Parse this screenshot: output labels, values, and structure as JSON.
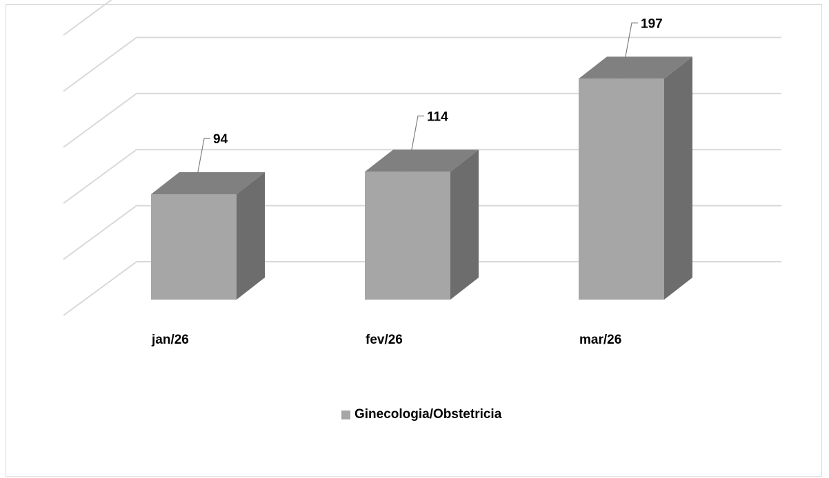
{
  "chart_data": {
    "type": "bar",
    "style": "3d-column",
    "categories": [
      "jan/26",
      "fev/26",
      "mar/26"
    ],
    "series": [
      {
        "name": "Ginecologia/Obstetricia",
        "values": [
          94,
          114,
          197
        ],
        "color": "#a6a6a6"
      }
    ],
    "data_labels": [
      "94",
      "114",
      "197"
    ],
    "ylim": [
      0,
      250
    ],
    "grid": true,
    "legend_position": "bottom",
    "colors": {
      "front": "#a6a6a6",
      "top": "#808080",
      "side": "#6d6d6d",
      "grid": "#d9d9d9"
    }
  },
  "legend": {
    "label": "Ginecologia/Obstetricia"
  }
}
